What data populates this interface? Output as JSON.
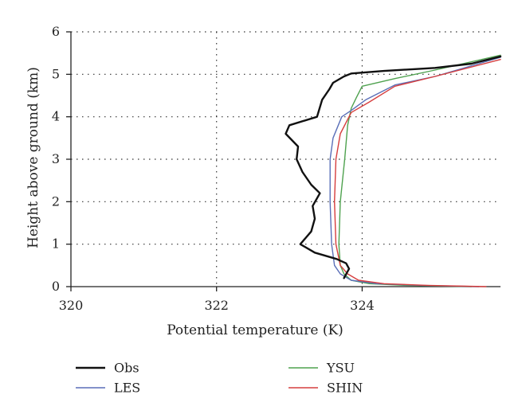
{
  "chart_data": {
    "type": "line",
    "xlabel": "Potential temperature (K)",
    "ylabel": "Height above ground (km)",
    "xlim": [
      320,
      325.9
    ],
    "ylim": [
      0,
      6
    ],
    "xticks": [
      320,
      322,
      324
    ],
    "yticks": [
      0,
      1,
      2,
      3,
      4,
      5,
      6
    ],
    "xtick_labels": [
      "320",
      "322",
      "324"
    ],
    "ytick_labels": [
      "0",
      "1",
      "2",
      "3",
      "4",
      "5",
      "6"
    ],
    "grid": true,
    "legend_position": "bottom",
    "series": [
      {
        "name": "Obs",
        "color": "#111111",
        "points": [
          [
            323.75,
            0.2
          ],
          [
            323.82,
            0.42
          ],
          [
            323.78,
            0.55
          ],
          [
            323.65,
            0.65
          ],
          [
            323.35,
            0.8
          ],
          [
            323.15,
            1.0
          ],
          [
            323.3,
            1.3
          ],
          [
            323.35,
            1.6
          ],
          [
            323.32,
            1.9
          ],
          [
            323.42,
            2.2
          ],
          [
            323.3,
            2.4
          ],
          [
            323.18,
            2.7
          ],
          [
            323.1,
            3.0
          ],
          [
            323.12,
            3.3
          ],
          [
            322.95,
            3.6
          ],
          [
            323.0,
            3.8
          ],
          [
            323.38,
            4.0
          ],
          [
            323.45,
            4.4
          ],
          [
            323.55,
            4.65
          ],
          [
            323.6,
            4.8
          ],
          [
            323.75,
            4.95
          ],
          [
            323.85,
            5.02
          ],
          [
            324.3,
            5.08
          ],
          [
            325.0,
            5.15
          ],
          [
            325.5,
            5.25
          ],
          [
            325.9,
            5.42
          ]
        ]
      },
      {
        "name": "LES",
        "color": "#5a6fb8",
        "points": [
          [
            325.6,
            0.0
          ],
          [
            324.8,
            0.03
          ],
          [
            324.2,
            0.07
          ],
          [
            323.85,
            0.15
          ],
          [
            323.7,
            0.3
          ],
          [
            323.62,
            0.5
          ],
          [
            323.58,
            1.0
          ],
          [
            323.56,
            2.0
          ],
          [
            323.56,
            3.0
          ],
          [
            323.6,
            3.5
          ],
          [
            323.72,
            4.0
          ],
          [
            323.85,
            4.15
          ],
          [
            324.05,
            4.4
          ],
          [
            324.45,
            4.75
          ],
          [
            325.0,
            4.95
          ],
          [
            325.9,
            5.4
          ]
        ]
      },
      {
        "name": "YSU",
        "color": "#4fa24f",
        "points": [
          [
            325.5,
            0.0
          ],
          [
            324.6,
            0.03
          ],
          [
            324.1,
            0.07
          ],
          [
            323.85,
            0.15
          ],
          [
            323.75,
            0.3
          ],
          [
            323.7,
            0.5
          ],
          [
            323.68,
            1.0
          ],
          [
            323.7,
            2.0
          ],
          [
            323.76,
            3.0
          ],
          [
            323.8,
            3.8
          ],
          [
            323.85,
            4.2
          ],
          [
            323.92,
            4.45
          ],
          [
            324.0,
            4.72
          ],
          [
            324.45,
            4.9
          ],
          [
            325.0,
            5.1
          ],
          [
            325.9,
            5.45
          ]
        ]
      },
      {
        "name": "SHIN",
        "color": "#d63e3e",
        "points": [
          [
            325.7,
            0.0
          ],
          [
            324.9,
            0.03
          ],
          [
            324.3,
            0.07
          ],
          [
            323.95,
            0.15
          ],
          [
            323.8,
            0.3
          ],
          [
            323.7,
            0.5
          ],
          [
            323.64,
            1.0
          ],
          [
            323.62,
            2.0
          ],
          [
            323.64,
            3.0
          ],
          [
            323.7,
            3.6
          ],
          [
            323.85,
            4.1
          ],
          [
            324.1,
            4.35
          ],
          [
            324.45,
            4.72
          ],
          [
            325.0,
            4.95
          ],
          [
            325.9,
            5.35
          ]
        ]
      }
    ]
  }
}
